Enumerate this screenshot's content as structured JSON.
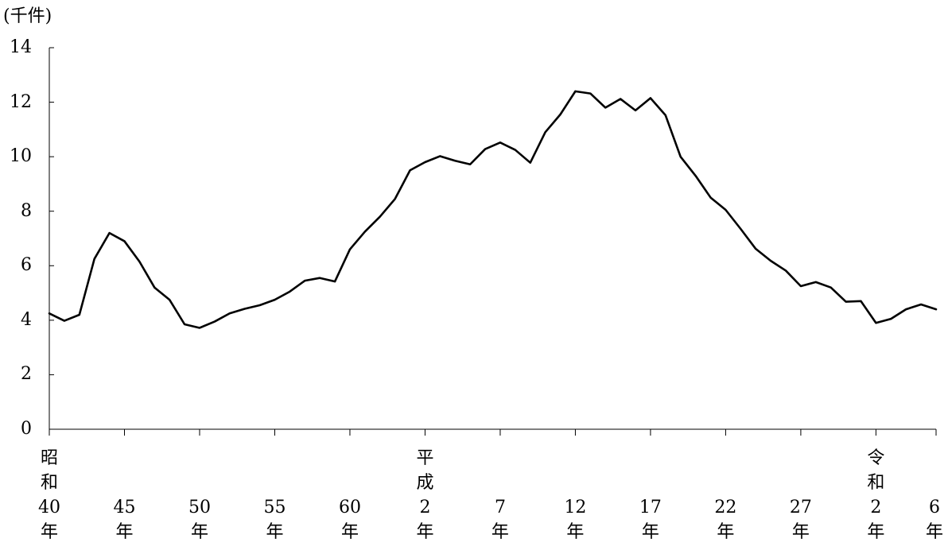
{
  "chart_data": {
    "type": "line",
    "y_unit_label": "(千件)",
    "ylim": [
      0,
      14
    ],
    "y_ticks": [
      {
        "value": 0,
        "label": "0"
      },
      {
        "value": 2,
        "label": "2"
      },
      {
        "value": 4,
        "label": "4"
      },
      {
        "value": 6,
        "label": "6"
      },
      {
        "value": 8,
        "label": "8"
      },
      {
        "value": 10,
        "label": "10"
      },
      {
        "value": 12,
        "label": "12"
      },
      {
        "value": 14,
        "label": "14"
      }
    ],
    "x_tick_labels": [
      {
        "era": [
          "昭",
          "和"
        ],
        "year": "40",
        "suffix": "年"
      },
      {
        "era": [
          "",
          ""
        ],
        "year": "45",
        "suffix": "年"
      },
      {
        "era": [
          "",
          ""
        ],
        "year": "50",
        "suffix": "年"
      },
      {
        "era": [
          "",
          ""
        ],
        "year": "55",
        "suffix": "年"
      },
      {
        "era": [
          "",
          ""
        ],
        "year": "60",
        "suffix": "年"
      },
      {
        "era": [
          "平",
          "成"
        ],
        "year": "2",
        "suffix": "年"
      },
      {
        "era": [
          "",
          ""
        ],
        "year": "7",
        "suffix": "年"
      },
      {
        "era": [
          "",
          ""
        ],
        "year": "12",
        "suffix": "年"
      },
      {
        "era": [
          "",
          ""
        ],
        "year": "17",
        "suffix": "年"
      },
      {
        "era": [
          "",
          ""
        ],
        "year": "22",
        "suffix": "年"
      },
      {
        "era": [
          "",
          ""
        ],
        "year": "27",
        "suffix": "年"
      },
      {
        "era": [
          "令",
          "和"
        ],
        "year": "2",
        "suffix": "年"
      },
      {
        "era": [
          "",
          ""
        ],
        "year": "6",
        "suffix": "年"
      }
    ],
    "grid": false,
    "series": [
      {
        "color": "#000000",
        "values": [
          4.25,
          3.98,
          4.2,
          6.25,
          7.2,
          6.9,
          6.15,
          5.2,
          4.75,
          3.85,
          3.72,
          3.95,
          4.25,
          4.42,
          4.55,
          4.75,
          5.05,
          5.45,
          5.55,
          5.42,
          6.6,
          7.25,
          7.8,
          8.45,
          9.5,
          9.8,
          10.02,
          9.85,
          9.72,
          10.28,
          10.52,
          10.25,
          9.78,
          10.9,
          11.55,
          12.4,
          12.32,
          11.8,
          12.12,
          11.7,
          12.15,
          11.52,
          10.0,
          9.3,
          8.5,
          8.05,
          7.35,
          6.62,
          6.18,
          5.82,
          5.25,
          5.4,
          5.2,
          4.68,
          4.7,
          3.9,
          4.05,
          4.4,
          4.58,
          4.4
        ]
      }
    ]
  }
}
